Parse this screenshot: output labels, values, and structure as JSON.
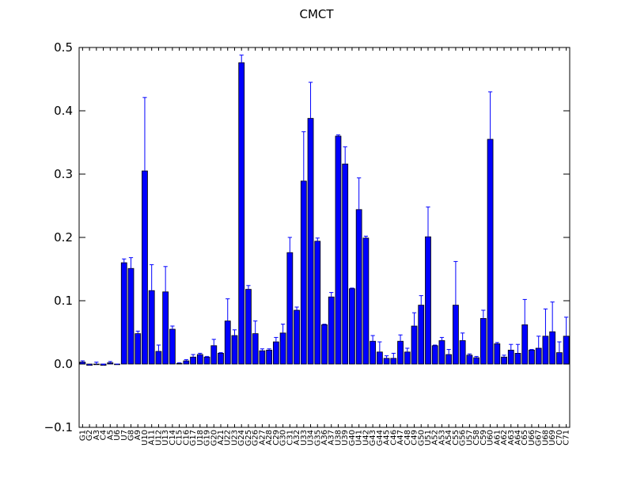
{
  "chart_data": {
    "type": "bar",
    "title": "CMCT",
    "xlabel": "",
    "ylabel": "",
    "ylim": [
      -0.1,
      0.5
    ],
    "yticks": [
      "−0.1",
      "0.0",
      "0.1",
      "0.2",
      "0.3",
      "0.4",
      "0.5"
    ],
    "grid": false,
    "bar_color": "#0000ff",
    "error_color": "#0000ff",
    "categories": [
      "G1",
      "G2",
      "A3",
      "C4",
      "A5",
      "U6",
      "U7",
      "G8",
      "A9",
      "U10",
      "A11",
      "U12",
      "U13",
      "C14",
      "C15",
      "C16",
      "G17",
      "U18",
      "G19",
      "G20",
      "A21",
      "U22",
      "U23",
      "G24",
      "G25",
      "G26",
      "A27",
      "A28",
      "C29",
      "G30",
      "C31",
      "A32",
      "U33",
      "U34",
      "G35",
      "A36",
      "A37",
      "U38",
      "U39",
      "G40",
      "U41",
      "U42",
      "G43",
      "G44",
      "A45",
      "C46",
      "A47",
      "C48",
      "C49",
      "G50",
      "U51",
      "A52",
      "A53",
      "A54",
      "C55",
      "G56",
      "U57",
      "C58",
      "C59",
      "U60",
      "A61",
      "A62",
      "A63",
      "A64",
      "C65",
      "U66",
      "G67",
      "U68",
      "U69",
      "C70",
      "C71"
    ],
    "values": [
      0.003,
      -0.002,
      -0.001,
      -0.002,
      0.002,
      -0.001,
      0.16,
      0.151,
      0.048,
      0.305,
      0.116,
      0.02,
      0.114,
      0.055,
      0.001,
      0.005,
      0.011,
      0.015,
      0.011,
      0.029,
      0.017,
      0.068,
      0.045,
      0.476,
      0.118,
      0.048,
      0.021,
      0.022,
      0.035,
      0.049,
      0.176,
      0.085,
      0.289,
      0.388,
      0.194,
      0.062,
      0.106,
      0.36,
      0.316,
      0.119,
      0.244,
      0.199,
      0.036,
      0.019,
      0.009,
      0.009,
      0.036,
      0.019,
      0.06,
      0.093,
      0.201,
      0.029,
      0.037,
      0.015,
      0.093,
      0.037,
      0.014,
      0.01,
      0.072,
      0.355,
      0.032,
      0.011,
      0.022,
      0.017,
      0.062,
      0.022,
      0.025,
      0.044,
      0.051,
      0.018,
      0.044
    ],
    "errors": [
      0.002,
      0.001,
      0.004,
      0.002,
      0.002,
      0.001,
      0.006,
      0.017,
      0.004,
      0.116,
      0.041,
      0.01,
      0.04,
      0.005,
      0.001,
      0.002,
      0.004,
      0.002,
      0.001,
      0.01,
      0.001,
      0.035,
      0.009,
      0.012,
      0.006,
      0.02,
      0.003,
      0.002,
      0.007,
      0.014,
      0.024,
      0.005,
      0.078,
      0.057,
      0.005,
      0.001,
      0.007,
      0.002,
      0.027,
      0.001,
      0.05,
      0.003,
      0.009,
      0.016,
      0.004,
      0.008,
      0.01,
      0.006,
      0.021,
      0.015,
      0.047,
      0.001,
      0.005,
      0.008,
      0.069,
      0.012,
      0.002,
      0.002,
      0.013,
      0.075,
      0.002,
      0.003,
      0.009,
      0.014,
      0.04,
      0.001,
      0.019,
      0.043,
      0.047,
      0.017,
      0.03
    ]
  }
}
